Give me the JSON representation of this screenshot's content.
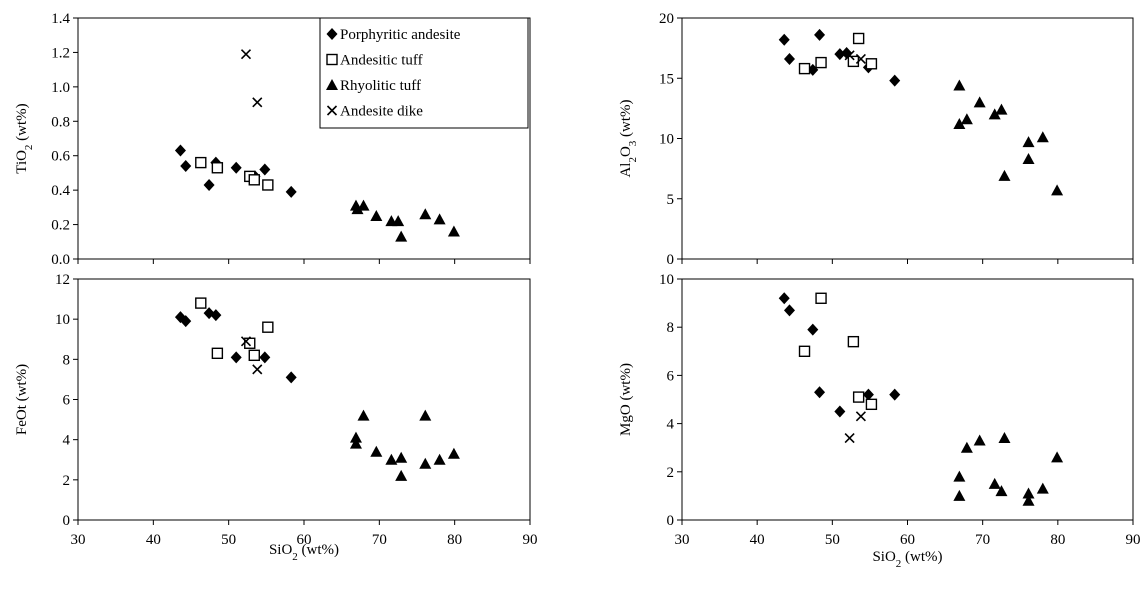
{
  "chart_data": [
    {
      "type": "scatter",
      "id": "tio2",
      "ylabel": {
        "base": "TiO",
        "sub": "2",
        "tail": " (wt%)"
      },
      "xlabel": null,
      "xlim": [
        30,
        90
      ],
      "ylim": [
        0,
        1.4
      ],
      "xticks": [
        "30",
        "40",
        "50",
        "60",
        "70",
        "80",
        "90"
      ],
      "yticks": [
        "0.0",
        "0.2",
        "0.4",
        "0.6",
        "0.8",
        "1.0",
        "1.2",
        "1.4"
      ],
      "series": [
        {
          "name": "Porphyritic andesite",
          "marker": "diamond",
          "points": [
            [
              43.6,
              0.63
            ],
            [
              44.3,
              0.54
            ],
            [
              47.4,
              0.43
            ],
            [
              48.3,
              0.56
            ],
            [
              51.0,
              0.53
            ],
            [
              53.5,
              0.48
            ],
            [
              54.8,
              0.52
            ],
            [
              58.3,
              0.39
            ]
          ]
        },
        {
          "name": "Andesitic tuff",
          "marker": "square",
          "points": [
            [
              46.3,
              0.56
            ],
            [
              48.5,
              0.53
            ],
            [
              52.8,
              0.48
            ],
            [
              53.4,
              0.46
            ],
            [
              55.2,
              0.43
            ]
          ]
        },
        {
          "name": "Rhyolitic tuff",
          "marker": "triangle",
          "points": [
            [
              66.9,
              0.31
            ],
            [
              67.1,
              0.29
            ],
            [
              67.9,
              0.31
            ],
            [
              69.6,
              0.25
            ],
            [
              71.6,
              0.22
            ],
            [
              72.5,
              0.22
            ],
            [
              72.9,
              0.13
            ],
            [
              76.1,
              0.26
            ],
            [
              78.0,
              0.23
            ],
            [
              79.9,
              0.16
            ]
          ]
        },
        {
          "name": "Andesite dike",
          "marker": "x",
          "points": [
            [
              52.3,
              1.19
            ],
            [
              53.8,
              0.91
            ]
          ]
        }
      ],
      "legend": {
        "placement": "top-right",
        "entries": [
          "Porphyritic andesite",
          "Andesitic tuff",
          "Rhyolitic tuff",
          "Andesite dike"
        ]
      }
    },
    {
      "type": "scatter",
      "id": "al2o3",
      "ylabel": {
        "base": "Al",
        "sub": "2",
        "base2": "O",
        "sub2": "3",
        "tail": " (wt%)"
      },
      "xlabel": null,
      "xlim": [
        30,
        90
      ],
      "ylim": [
        0,
        20
      ],
      "xticks": [
        "30",
        "40",
        "50",
        "60",
        "70",
        "80",
        "90"
      ],
      "yticks": [
        "0",
        "5",
        "10",
        "15",
        "20"
      ],
      "series": [
        {
          "name": "Porphyritic andesite",
          "marker": "diamond",
          "points": [
            [
              43.6,
              18.2
            ],
            [
              44.3,
              16.6
            ],
            [
              47.4,
              15.7
            ],
            [
              48.3,
              18.6
            ],
            [
              51.0,
              17.0
            ],
            [
              51.9,
              17.1
            ],
            [
              54.8,
              15.9
            ],
            [
              58.3,
              14.8
            ]
          ]
        },
        {
          "name": "Andesitic tuff",
          "marker": "square",
          "points": [
            [
              46.3,
              15.8
            ],
            [
              48.5,
              16.3
            ],
            [
              52.8,
              16.4
            ],
            [
              53.5,
              18.3
            ],
            [
              55.2,
              16.2
            ]
          ]
        },
        {
          "name": "Rhyolitic tuff",
          "marker": "triangle",
          "points": [
            [
              66.9,
              14.4
            ],
            [
              66.9,
              11.2
            ],
            [
              67.9,
              11.6
            ],
            [
              69.6,
              13.0
            ],
            [
              71.6,
              12.0
            ],
            [
              72.5,
              12.4
            ],
            [
              72.9,
              6.9
            ],
            [
              76.1,
              9.7
            ],
            [
              76.1,
              8.3
            ],
            [
              78.0,
              10.1
            ],
            [
              79.9,
              5.7
            ]
          ]
        },
        {
          "name": "Andesite dike",
          "marker": "x",
          "points": [
            [
              52.3,
              16.9
            ],
            [
              53.8,
              16.6
            ]
          ]
        }
      ]
    },
    {
      "type": "scatter",
      "id": "feot",
      "ylabel": {
        "base": "FeOt",
        "tail": " (wt%)"
      },
      "xlabel": {
        "base": "SiO",
        "sub": "2",
        "tail": " (wt%)"
      },
      "xlim": [
        30,
        90
      ],
      "ylim": [
        0,
        12
      ],
      "xticks": [
        "30",
        "40",
        "50",
        "60",
        "70",
        "80",
        "90"
      ],
      "yticks": [
        "0",
        "2",
        "4",
        "6",
        "8",
        "10",
        "12"
      ],
      "series": [
        {
          "name": "Porphyritic andesite",
          "marker": "diamond",
          "points": [
            [
              43.6,
              10.1
            ],
            [
              44.3,
              9.9
            ],
            [
              47.4,
              10.3
            ],
            [
              48.3,
              10.2
            ],
            [
              51.0,
              8.1
            ],
            [
              54.8,
              8.1
            ],
            [
              58.3,
              7.1
            ]
          ]
        },
        {
          "name": "Andesitic tuff",
          "marker": "square",
          "points": [
            [
              46.3,
              10.8
            ],
            [
              48.5,
              8.3
            ],
            [
              52.8,
              8.8
            ],
            [
              53.4,
              8.2
            ],
            [
              55.2,
              9.6
            ]
          ]
        },
        {
          "name": "Rhyolitic tuff",
          "marker": "triangle",
          "points": [
            [
              66.9,
              4.1
            ],
            [
              66.9,
              3.8
            ],
            [
              67.9,
              5.2
            ],
            [
              69.6,
              3.4
            ],
            [
              71.6,
              3.0
            ],
            [
              72.9,
              3.1
            ],
            [
              72.9,
              2.2
            ],
            [
              76.1,
              5.2
            ],
            [
              76.1,
              2.8
            ],
            [
              78.0,
              3.0
            ],
            [
              79.9,
              3.3
            ]
          ]
        },
        {
          "name": "Andesite dike",
          "marker": "x",
          "points": [
            [
              52.3,
              8.9
            ],
            [
              53.8,
              7.5
            ]
          ]
        }
      ]
    },
    {
      "type": "scatter",
      "id": "mgo",
      "ylabel": {
        "base": "MgO",
        "tail": " (wt%)"
      },
      "xlabel": {
        "base": "SiO",
        "sub": "2",
        "tail": " (wt%)"
      },
      "xlim": [
        30,
        90
      ],
      "ylim": [
        0,
        10
      ],
      "xticks": [
        "30",
        "40",
        "50",
        "60",
        "70",
        "80",
        "90"
      ],
      "yticks": [
        "0",
        "2",
        "4",
        "6",
        "8",
        "10"
      ],
      "series": [
        {
          "name": "Porphyritic andesite",
          "marker": "diamond",
          "points": [
            [
              43.6,
              9.2
            ],
            [
              44.3,
              8.7
            ],
            [
              47.4,
              7.9
            ],
            [
              48.3,
              5.3
            ],
            [
              51.0,
              4.5
            ],
            [
              54.8,
              5.2
            ],
            [
              58.3,
              5.2
            ]
          ]
        },
        {
          "name": "Andesitic tuff",
          "marker": "square",
          "points": [
            [
              46.3,
              7.0
            ],
            [
              48.5,
              9.2
            ],
            [
              52.8,
              7.4
            ],
            [
              53.5,
              5.1
            ],
            [
              55.2,
              4.8
            ]
          ]
        },
        {
          "name": "Rhyolitic tuff",
          "marker": "triangle",
          "points": [
            [
              66.9,
              1.8
            ],
            [
              66.9,
              1.0
            ],
            [
              67.9,
              3.0
            ],
            [
              69.6,
              3.3
            ],
            [
              71.6,
              1.5
            ],
            [
              72.5,
              1.2
            ],
            [
              72.9,
              3.4
            ],
            [
              76.1,
              1.1
            ],
            [
              76.1,
              0.8
            ],
            [
              78.0,
              1.3
            ],
            [
              79.9,
              2.6
            ]
          ]
        },
        {
          "name": "Andesite dike",
          "marker": "x",
          "points": [
            [
              52.3,
              3.4
            ],
            [
              53.8,
              4.3
            ]
          ]
        }
      ]
    }
  ]
}
